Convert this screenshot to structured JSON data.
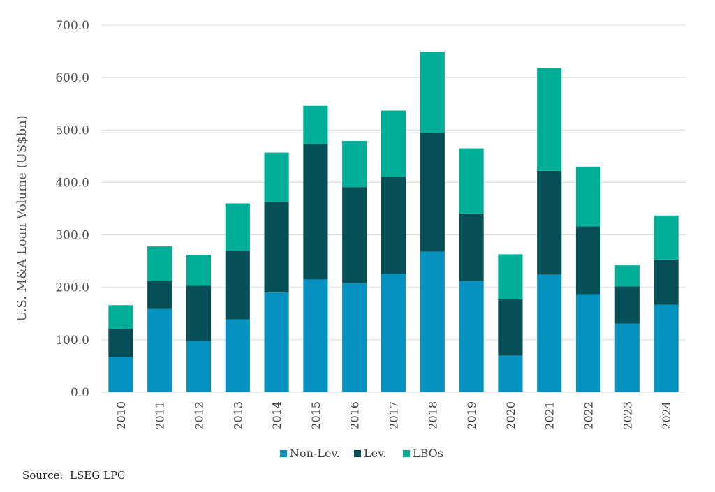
{
  "chart_data": {
    "type": "bar",
    "stacked": true,
    "categories": [
      "2010",
      "2011",
      "2012",
      "2013",
      "2014",
      "2015",
      "2016",
      "2017",
      "2018",
      "2019",
      "2020",
      "2021",
      "2022",
      "2023",
      "2024"
    ],
    "series": [
      {
        "name": "Non-Lev.",
        "color": "#0692c0",
        "values": [
          67,
          159,
          98,
          139,
          190,
          215,
          208,
          226,
          268,
          212,
          70,
          224,
          187,
          131,
          167
        ]
      },
      {
        "name": "Lev.",
        "color": "#064f57",
        "values": [
          54,
          53,
          105,
          131,
          173,
          258,
          183,
          185,
          227,
          129,
          107,
          198,
          129,
          71,
          86
        ]
      },
      {
        "name": "LBOs",
        "color": "#00ae98",
        "values": [
          45,
          66,
          59,
          90,
          94,
          73,
          88,
          126,
          154,
          124,
          86,
          196,
          114,
          40,
          84
        ]
      }
    ],
    "ylabel": "U.S. M&A Loan Volume (US$bn)",
    "ylim": [
      0,
      700
    ],
    "yticks": [
      "0.0",
      "100.0",
      "200.0",
      "300.0",
      "400.0",
      "500.0",
      "600.0",
      "700.0"
    ],
    "ytick_values": [
      0,
      100,
      200,
      300,
      400,
      500,
      600,
      700
    ],
    "grid": true,
    "legend_placement": "bottom-center"
  },
  "source_note": "Source:  LSEG LPC"
}
